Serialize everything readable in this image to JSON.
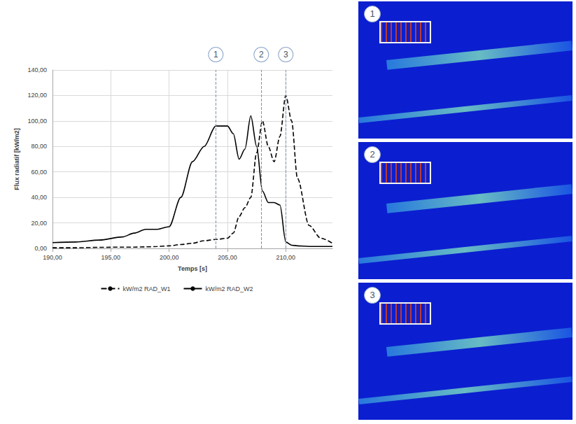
{
  "chart_data": {
    "type": "line",
    "x_label": "Temps [s]",
    "y_label": "Flux radiatif [kW/m2]",
    "x": [
      190,
      192,
      194,
      196,
      197,
      198,
      199,
      200,
      201,
      202,
      203,
      204,
      205,
      205.5,
      206,
      206.5,
      207,
      207.5,
      208,
      208.5,
      209,
      209.5,
      210,
      210.5,
      211,
      212,
      213,
      214
    ],
    "series": [
      {
        "name": "kW/m2 RAD_W1",
        "color": "#000000",
        "line_style": "dashed",
        "values": [
          0.5,
          0.5,
          0.8,
          1,
          1,
          1.2,
          1.5,
          2,
          3,
          4,
          6,
          7,
          8,
          12,
          25,
          32,
          40,
          75,
          100,
          80,
          68,
          88,
          120,
          100,
          55,
          18,
          8,
          4
        ]
      },
      {
        "name": "kW/m2 RAD_W2",
        "color": "#000000",
        "line_style": "solid",
        "values": [
          4.5,
          5,
          6.5,
          9,
          12,
          15,
          15,
          17,
          40,
          68,
          80,
          96,
          96,
          90,
          70,
          78,
          104,
          80,
          45,
          36,
          36,
          34,
          5,
          2.5,
          2,
          1.5,
          1.5,
          1.5
        ]
      }
    ],
    "xlim": [
      190,
      214
    ],
    "ylim": [
      0,
      140
    ],
    "xticks": [
      {
        "value": 190,
        "label": "190,00"
      },
      {
        "value": 195,
        "label": "195,00"
      },
      {
        "value": 200,
        "label": "200,00"
      },
      {
        "value": 205,
        "label": "205,00"
      },
      {
        "value": 210,
        "label": "210,00"
      }
    ],
    "yticks": [
      {
        "value": 0,
        "label": "0,00"
      },
      {
        "value": 20,
        "label": "20,00"
      },
      {
        "value": 40,
        "label": "40,00"
      },
      {
        "value": 60,
        "label": "60,00"
      },
      {
        "value": 80,
        "label": "80,00"
      },
      {
        "value": 100,
        "label": "100,00"
      },
      {
        "value": 120,
        "label": "120,00"
      },
      {
        "value": 140,
        "label": "140,00"
      }
    ],
    "grid": true,
    "legend": "bottom",
    "annotations": [
      {
        "x": 204,
        "label": "1"
      },
      {
        "x": 207.9,
        "label": "2"
      },
      {
        "x": 210,
        "label": "3"
      }
    ]
  },
  "panels": [
    {
      "label": "1"
    },
    {
      "label": "2"
    },
    {
      "label": "3"
    }
  ]
}
